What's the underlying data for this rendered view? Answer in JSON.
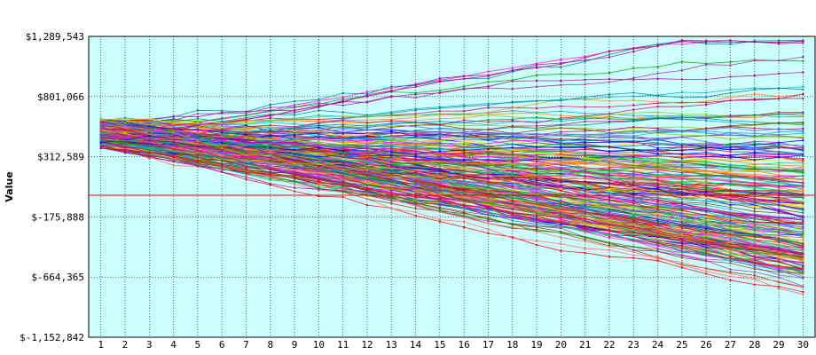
{
  "chart_data": {
    "type": "line",
    "title": "",
    "xlabel": "",
    "ylabel": "Value",
    "categories": [
      "1",
      "2",
      "3",
      "4",
      "5",
      "6",
      "7",
      "8",
      "9",
      "10",
      "11",
      "12",
      "13",
      "14",
      "15",
      "16",
      "17",
      "18",
      "19",
      "20",
      "21",
      "22",
      "23",
      "24",
      "25",
      "26",
      "27",
      "28",
      "29",
      "30"
    ],
    "y_ticks": [
      "$1,289,543",
      "$801,066",
      "$312,589",
      "$-175,888",
      "$-664,365",
      "$-1,152,842"
    ],
    "ylim": [
      -1152842,
      1289543
    ],
    "grid": true,
    "legend": "none",
    "reference_line": {
      "value": 0,
      "color": "#ff0000"
    },
    "background_color": "#ccffff",
    "series_colors": [
      "#ff0000",
      "#00aa00",
      "#0000ff",
      "#ff00ff",
      "#ff8800",
      "#00aacc",
      "#884400",
      "#aa00aa",
      "#008888",
      "#88cc00",
      "#cc0066",
      "#6666ff",
      "#ffcc00",
      "#00cc66",
      "#993399",
      "#ff6666"
    ],
    "series_count": 220,
    "series_envelope": {
      "start_range": [
        380000,
        620000
      ],
      "upper_p98": [
        590000,
        610000,
        625000,
        640000,
        660000,
        675000,
        690000,
        710000,
        725000,
        740000,
        760000,
        775000,
        790000,
        805000,
        820000,
        840000,
        855000,
        870000,
        885000,
        900000,
        915000,
        930000,
        950000,
        965000,
        980000,
        995000,
        1010000,
        1030000,
        1045000,
        1060000
      ],
      "lower_p2": [
        380000,
        355000,
        330000,
        305000,
        280000,
        250000,
        215000,
        180000,
        140000,
        95000,
        45000,
        -10000,
        -70000,
        -135000,
        -205000,
        -280000,
        -350000,
        -420000,
        -490000,
        -560000,
        -620000,
        -680000,
        -730000,
        -770000,
        -810000,
        -840000,
        -865000,
        -885000,
        -900000,
        -915000
      ],
      "peak_max": 1260000,
      "trough_min": -1150000
    }
  }
}
